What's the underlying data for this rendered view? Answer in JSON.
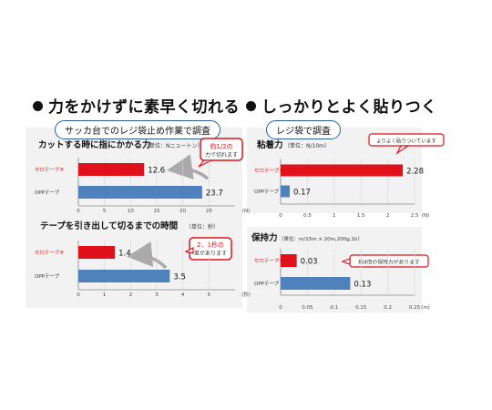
{
  "headings": {
    "left": "力をかけずに素早く切れる",
    "right": "しっかりとよく貼りつく"
  },
  "pills": {
    "left": "サッカ台でのレジ袋止め作業で調査",
    "right": "レジ袋で調査"
  },
  "callouts": {
    "force_line1": "約1/2の",
    "force_line2": "力で切れます",
    "time_line1": "2．1秒の",
    "time_line2": "差があります",
    "adhesion": "よりよく貼りついています",
    "holding": "約4倍の保持力があります"
  },
  "colors": {
    "red": "#e0111b",
    "blue": "#4f81bd",
    "panel": "#f2f2f2",
    "pill_border": "#2f5d98"
  },
  "chart_data": [
    {
      "id": "force",
      "type": "bar",
      "orientation": "horizontal",
      "title": "カットする時に指にかかる力",
      "unit_note": "（単位：Nニュートン）",
      "categories": [
        "セロテープ®",
        "OPPテープ"
      ],
      "values": [
        12.6,
        23.7
      ],
      "value_labels": [
        "12.6",
        "23.7"
      ],
      "xlim": [
        0,
        30
      ],
      "ticks": [
        "0",
        "5",
        "10",
        "15",
        "20",
        "25"
      ],
      "tick_values": [
        0,
        5,
        10,
        15,
        20,
        25
      ],
      "axis_unit": "(N)",
      "bar_colors": [
        "#e0111b",
        "#4f81bd"
      ]
    },
    {
      "id": "time",
      "type": "bar",
      "orientation": "horizontal",
      "title": "テープを引き出して切るまでの時間",
      "unit_note": "（単位：秒）",
      "categories": [
        "セロテープ®",
        "OPPテープ"
      ],
      "values": [
        1.4,
        3.5
      ],
      "value_labels": [
        "1.4",
        "3.5"
      ],
      "xlim": [
        0,
        6
      ],
      "ticks": [
        "0",
        "1",
        "2",
        "3",
        "4",
        "5"
      ],
      "tick_values": [
        0,
        1,
        2,
        3,
        4,
        5
      ],
      "axis_unit": "(秒)",
      "bar_colors": [
        "#e0111b",
        "#4f81bd"
      ]
    },
    {
      "id": "adhesion",
      "type": "bar",
      "orientation": "horizontal",
      "title": "粘着力",
      "unit_note": "（単位：N/10m）",
      "categories": [
        "セロテープ®",
        "OPPテープ"
      ],
      "values": [
        2.28,
        0.17
      ],
      "value_labels": [
        "2.28",
        "0.17"
      ],
      "xlim": [
        0,
        2.5
      ],
      "ticks": [
        "0",
        "0.5",
        "1",
        "1.5",
        "2",
        "2.5"
      ],
      "tick_values": [
        0,
        0.5,
        1,
        1.5,
        2,
        2.5
      ],
      "axis_unit": "(N)",
      "bar_colors": [
        "#e0111b",
        "#4f81bd"
      ]
    },
    {
      "id": "holding",
      "type": "bar",
      "orientation": "horizontal",
      "title": "保持力",
      "unit_note": "（単位：m/15m × 20m,200g,1h）",
      "categories": [
        "セロテープ®",
        "OPPテープ"
      ],
      "values": [
        0.03,
        0.13
      ],
      "value_labels": [
        "0.03",
        "0.13"
      ],
      "xlim": [
        0,
        0.25
      ],
      "ticks": [
        "0",
        "0.05",
        "0.1",
        "0.15",
        "0.2",
        "0.25"
      ],
      "tick_values": [
        0,
        0.05,
        0.1,
        0.15,
        0.2,
        0.25
      ],
      "axis_unit": "(m)",
      "bar_colors": [
        "#e0111b",
        "#4f81bd"
      ]
    }
  ]
}
